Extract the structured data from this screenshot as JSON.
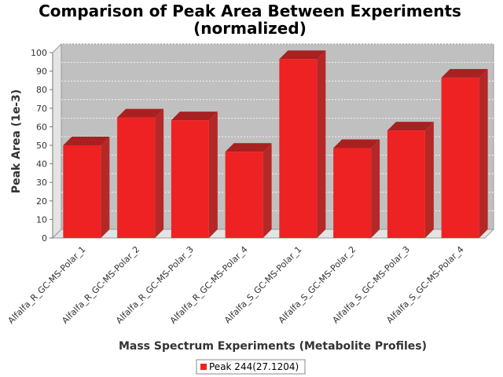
{
  "chart_data": {
    "type": "bar",
    "title_line1": "Comparison of Peak Area Between Experiments",
    "title_line2": "(normalized)",
    "xlabel": "Mass Spectrum Experiments (Metabolite Profiles)",
    "ylabel": "Peak Area (1e-3)",
    "ylim": [
      0,
      100
    ],
    "yticks": [
      "0",
      "10",
      "20",
      "30",
      "40",
      "50",
      "60",
      "70",
      "80",
      "90",
      "100"
    ],
    "grid": true,
    "legend_position": "bottom",
    "categories": [
      "Alfalfa_R_GC-MS-Polar_1",
      "Alfalfa_R_GC-MS-Polar_2",
      "Alfalfa_R_GC-MS-Polar_3",
      "Alfalfa_R_GC-MS-Polar_4",
      "Alfalfa_S_GC-MS-Polar_1",
      "Alfalfa_S_GC-MS-Polar_2",
      "Alfalfa_S_GC-MS-Polar_3",
      "Alfalfa_S_GC-MS-Polar_4"
    ],
    "series": [
      {
        "name": "Peak 244(27.1204)",
        "color": "#ee2222",
        "values": [
          50,
          65,
          63.5,
          46.5,
          96.5,
          48.5,
          58,
          86.5
        ]
      }
    ]
  }
}
